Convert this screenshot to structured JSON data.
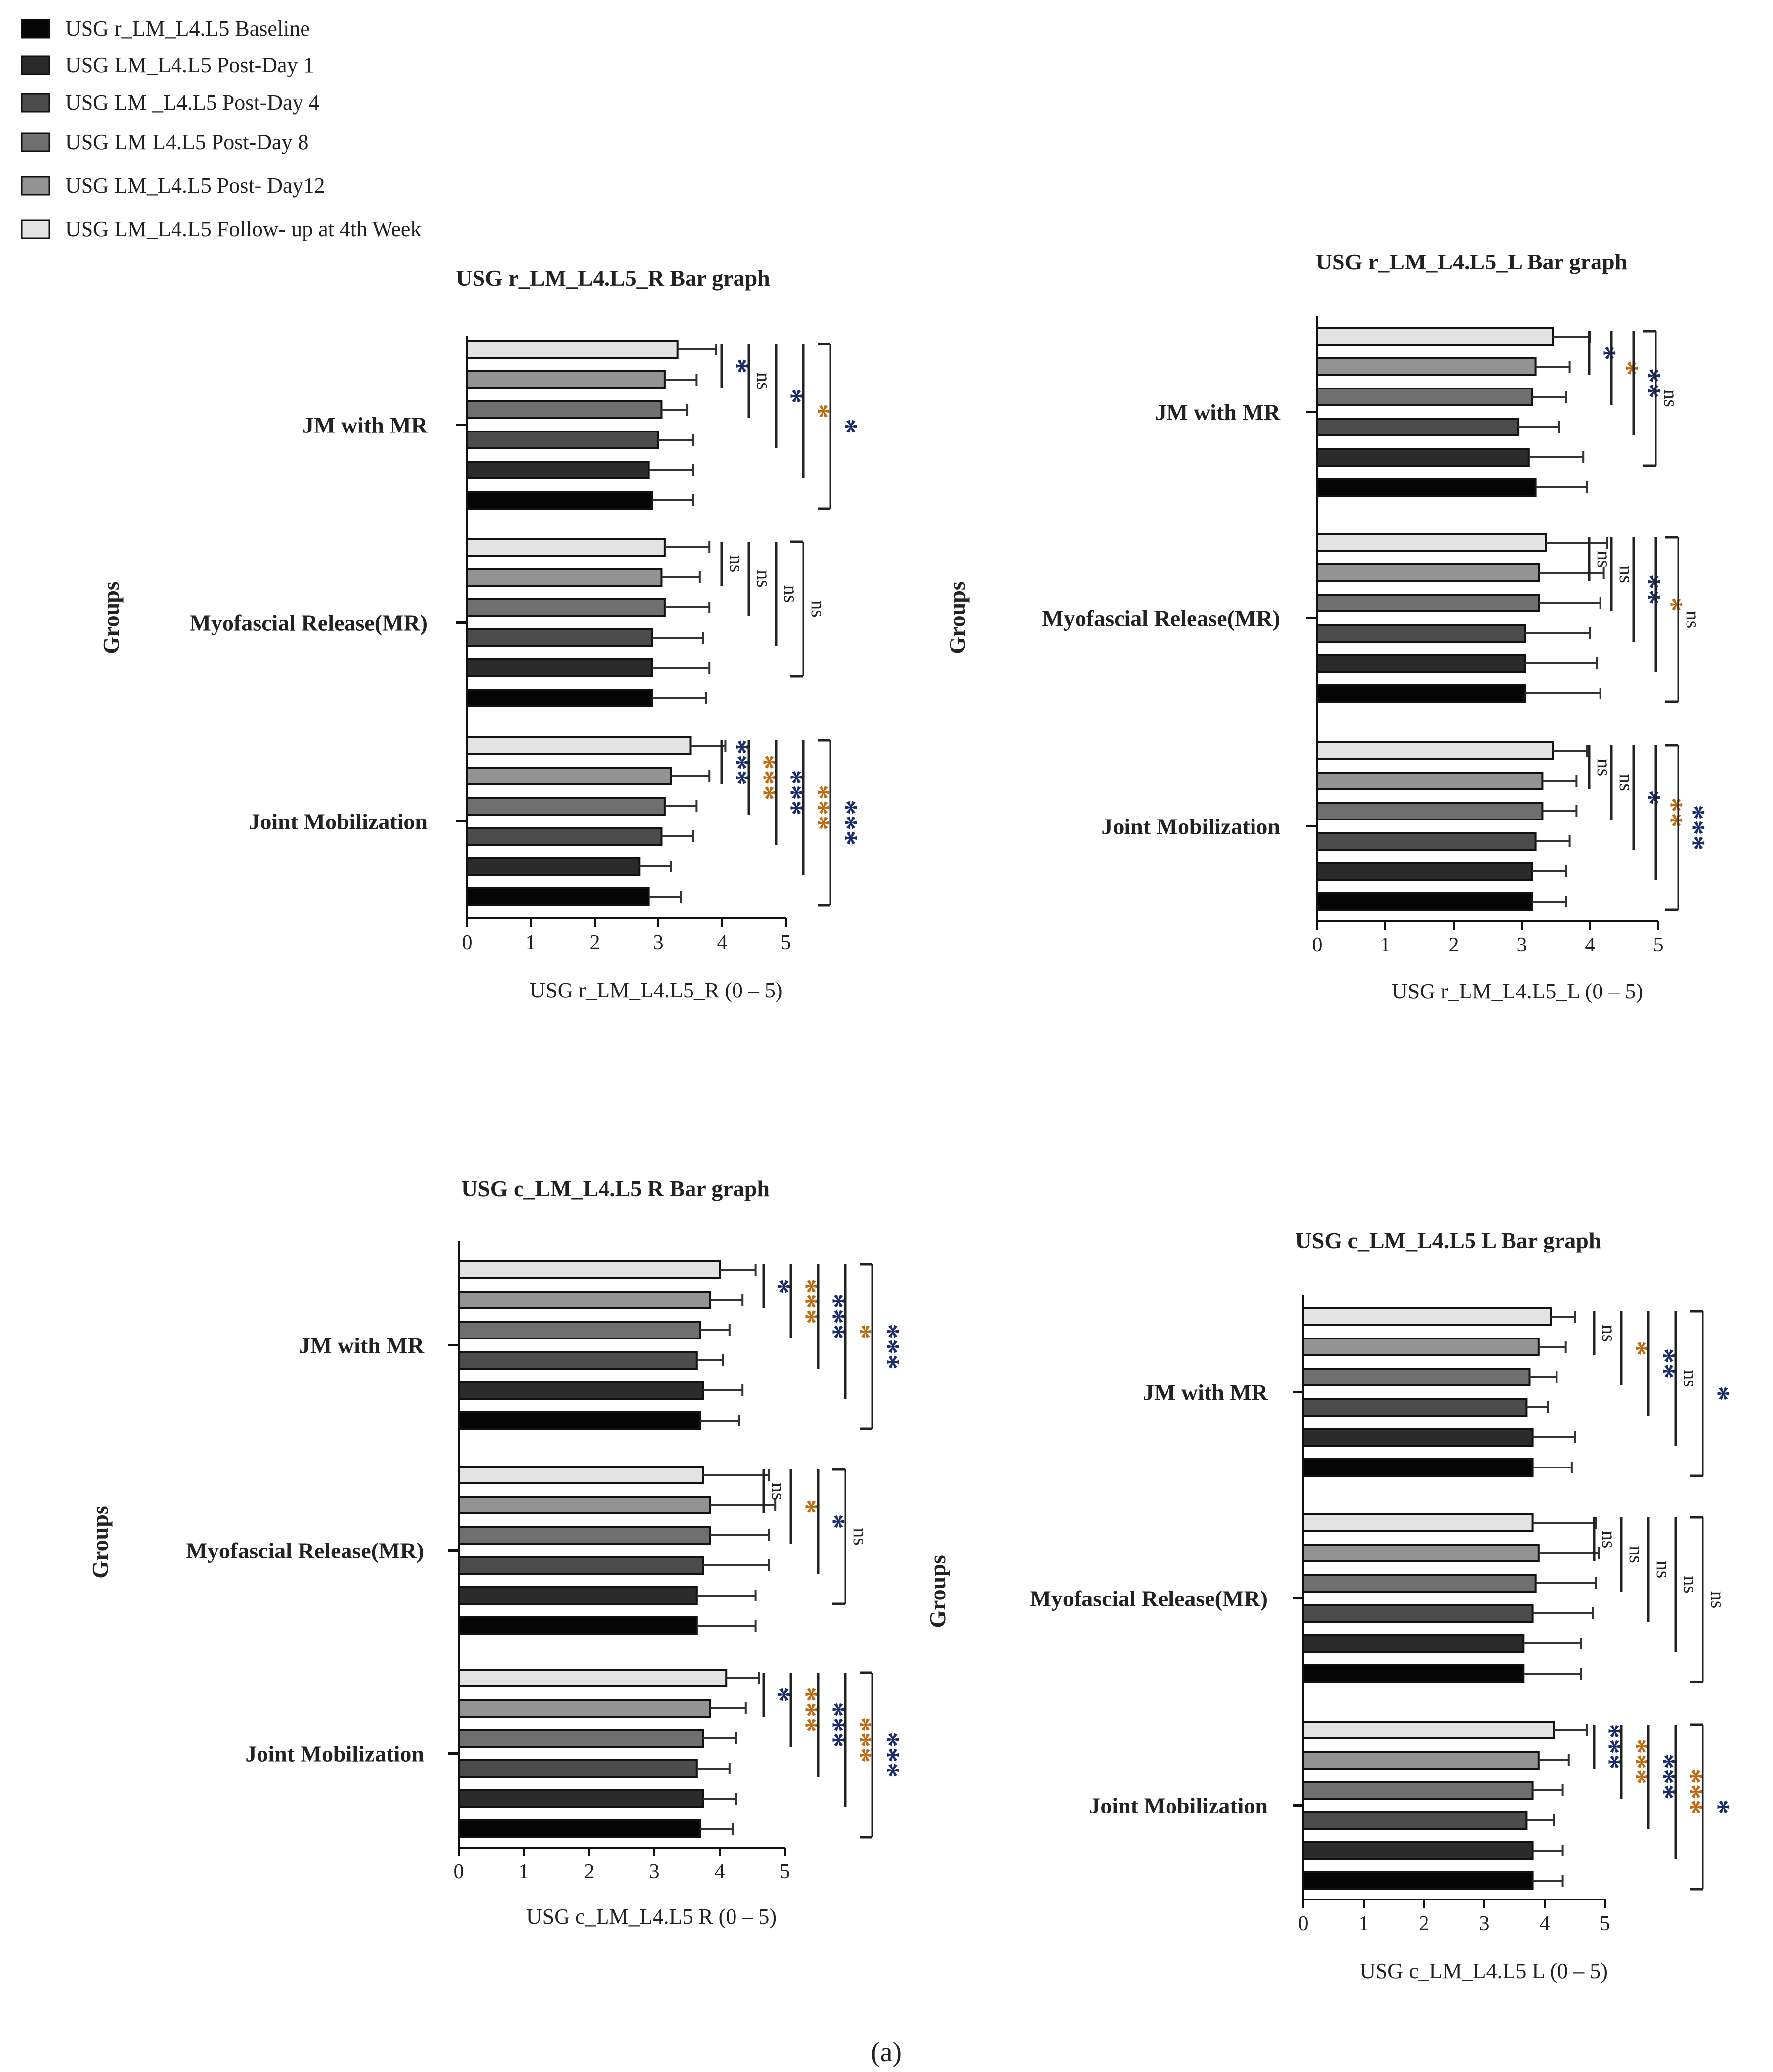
{
  "legend": [
    {
      "label": "USG r_LM_L4.L5 Baseline",
      "color": "#050505"
    },
    {
      "label": "USG LM_L4.L5 Post-Day 1",
      "color": "#2b2b2b"
    },
    {
      "label": "USG LM _L4.L5 Post-Day 4",
      "color": "#4c4c4c"
    },
    {
      "label": "USG LM L4.L5 Post-Day 8",
      "color": "#6f6f6f"
    },
    {
      "label": "USG LM_L4.L5 Post- Day12",
      "color": "#939393"
    },
    {
      "label": "USG LM_L4.L5 Follow- up at 4th Week",
      "color": "#e3e3e3"
    }
  ],
  "caption": "(a)",
  "colors": {
    "bar_stroke": "#111111",
    "text": "#222222",
    "sig_blue": "#1a2c6b",
    "sig_orange": "#c06a10"
  },
  "chart_data": [
    {
      "type": "bar",
      "orientation": "horizontal",
      "title": "USG r_LM_L4.L5_R Bar graph",
      "xlabel": "USG r_LM_L4.L5_R (0 – 5)",
      "ylabel": "Groups",
      "xlim": [
        0,
        5
      ],
      "xticks": [
        "0",
        "1",
        "2",
        "3",
        "4",
        "5"
      ],
      "categories": [
        "JM with MR",
        "Myofascial Release(MR)",
        "Joint Mobilization"
      ],
      "series_order": "Follow-up at 4th Week, Post-Day12, Post-Day 8, Post-Day 4, Post-Day 1, Baseline (top to bottom)",
      "values": [
        [
          3.3,
          3.1,
          3.05,
          3.0,
          2.85,
          2.9
        ],
        [
          3.1,
          3.05,
          3.1,
          2.9,
          2.9,
          2.9
        ],
        [
          3.5,
          3.2,
          3.1,
          3.05,
          2.7,
          2.85
        ]
      ],
      "errors": [
        [
          0.6,
          0.5,
          0.4,
          0.55,
          0.7,
          0.65
        ],
        [
          0.7,
          0.6,
          0.7,
          0.8,
          0.9,
          0.85
        ],
        [
          0.55,
          0.6,
          0.5,
          0.5,
          0.5,
          0.5
        ]
      ],
      "significance": [
        [
          "*",
          "ns",
          "*",
          "*",
          "*"
        ],
        [
          "ns",
          "ns",
          "ns",
          "ns"
        ],
        [
          "***",
          "***",
          "***",
          "***",
          "***"
        ]
      ]
    },
    {
      "type": "bar",
      "orientation": "horizontal",
      "title": "USG r_LM_L4.L5_L Bar graph",
      "xlabel": "USG r_LM_L4.L5_L (0 – 5)",
      "ylabel": "Groups",
      "xlim": [
        0,
        5
      ],
      "xticks": [
        "0",
        "1",
        "2",
        "3",
        "4",
        "5"
      ],
      "categories": [
        "JM with MR",
        "Myofascial Release(MR)",
        "Joint Mobilization"
      ],
      "values": [
        [
          3.45,
          3.2,
          3.15,
          2.95,
          3.1,
          3.2
        ],
        [
          3.35,
          3.25,
          3.25,
          3.05,
          3.05,
          3.05
        ],
        [
          3.45,
          3.3,
          3.3,
          3.2,
          3.15,
          3.15
        ]
      ],
      "errors": [
        [
          0.55,
          0.5,
          0.5,
          0.6,
          0.8,
          0.75
        ],
        [
          0.9,
          0.95,
          0.9,
          0.95,
          1.05,
          1.1
        ],
        [
          0.5,
          0.5,
          0.5,
          0.5,
          0.5,
          0.5
        ]
      ],
      "significance": [
        [
          "*",
          "*",
          "**",
          "ns"
        ],
        [
          "ns",
          "ns",
          "**",
          "*",
          "ns"
        ],
        [
          "ns",
          "ns",
          "*",
          "**",
          "***"
        ]
      ]
    },
    {
      "type": "bar",
      "orientation": "horizontal",
      "title": "USG c_LM_L4.L5 R Bar graph",
      "xlabel": "USG c_LM_L4.L5 R (0 – 5)",
      "ylabel": "Groups",
      "xlim": [
        0,
        5
      ],
      "xticks": [
        "0",
        "1",
        "2",
        "3",
        "4",
        "5"
      ],
      "categories": [
        "JM with MR",
        "Myofascial Release(MR)",
        "Joint Mobilization"
      ],
      "values": [
        [
          4.0,
          3.85,
          3.7,
          3.65,
          3.75,
          3.7
        ],
        [
          3.75,
          3.85,
          3.85,
          3.75,
          3.65,
          3.65
        ],
        [
          4.1,
          3.85,
          3.75,
          3.65,
          3.75,
          3.7
        ]
      ],
      "errors": [
        [
          0.55,
          0.5,
          0.45,
          0.4,
          0.6,
          0.6
        ],
        [
          1.0,
          1.0,
          0.9,
          1.0,
          0.9,
          0.9
        ],
        [
          0.5,
          0.55,
          0.5,
          0.5,
          0.5,
          0.5
        ]
      ],
      "significance": [
        [
          "*",
          "***",
          "***",
          "*",
          "***"
        ],
        [
          "ns",
          "*",
          "*",
          "ns"
        ],
        [
          "*",
          "***",
          "***",
          "***",
          "***"
        ]
      ]
    },
    {
      "type": "bar",
      "orientation": "horizontal",
      "title": "USG c_LM_L4.L5 L Bar graph",
      "xlabel": "USG c_LM_L4.L5 L (0 – 5)",
      "ylabel": "Groups",
      "xlim": [
        0,
        5
      ],
      "xticks": [
        "0",
        "1",
        "2",
        "3",
        "4",
        "5"
      ],
      "categories": [
        "JM with MR",
        "Myofascial Release(MR)",
        "Joint Mobilization"
      ],
      "values": [
        [
          4.1,
          3.9,
          3.75,
          3.7,
          3.8,
          3.8
        ],
        [
          3.8,
          3.9,
          3.85,
          3.8,
          3.65,
          3.65
        ],
        [
          4.15,
          3.9,
          3.8,
          3.7,
          3.8,
          3.8
        ]
      ],
      "errors": [
        [
          0.4,
          0.45,
          0.45,
          0.35,
          0.7,
          0.65
        ],
        [
          1.05,
          1.0,
          1.0,
          1.0,
          0.95,
          0.95
        ],
        [
          0.55,
          0.5,
          0.5,
          0.45,
          0.5,
          0.5
        ]
      ],
      "significance": [
        [
          "ns",
          "*",
          "**",
          "ns",
          "*"
        ],
        [
          "ns",
          "ns",
          "ns",
          "ns",
          "ns"
        ],
        [
          "***",
          "***",
          "***",
          "***",
          "*"
        ]
      ]
    }
  ]
}
